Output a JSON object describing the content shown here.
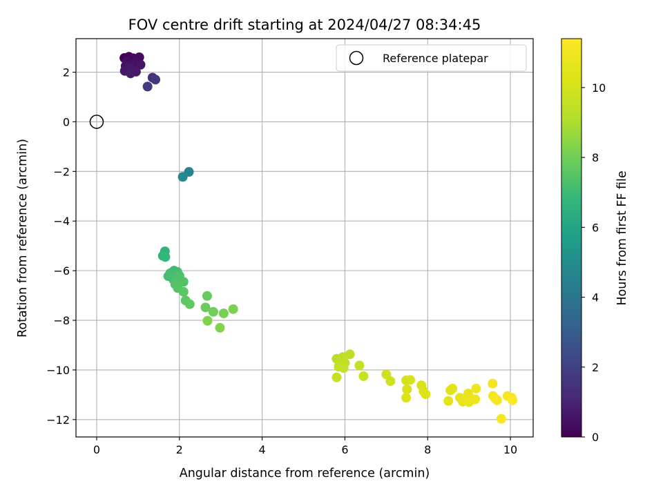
{
  "chart_data": {
    "type": "scatter",
    "title": "FOV centre drift starting at 2024/04/27 08:34:45",
    "xlabel": "Angular distance from reference (arcmin)",
    "ylabel": "Rotation from reference (arcmin)",
    "colorbar_label": "Hours from first FF file",
    "xlim": [
      -0.5,
      10.55
    ],
    "ylim": [
      -12.7,
      3.35
    ],
    "x_ticks": [
      0,
      2,
      4,
      6,
      8,
      10
    ],
    "y_ticks": [
      2,
      0,
      -2,
      -4,
      -6,
      -8,
      -10,
      -12
    ],
    "colorbar_range": [
      0,
      11.4
    ],
    "colorbar_ticks": [
      0,
      2,
      4,
      6,
      8,
      10
    ],
    "colormap": "viridis",
    "grid": true,
    "legend_position": "top-right",
    "reference": {
      "label": "Reference platepar",
      "x": 0,
      "y": 0
    },
    "points": [
      [
        0.67,
        2.57,
        0.0
      ],
      [
        0.78,
        2.62,
        0.1
      ],
      [
        0.88,
        2.56,
        0.2
      ],
      [
        1.03,
        2.6,
        0.3
      ],
      [
        0.73,
        2.42,
        0.35
      ],
      [
        0.94,
        2.38,
        0.4
      ],
      [
        0.85,
        2.28,
        0.45
      ],
      [
        1.06,
        2.3,
        0.5
      ],
      [
        0.7,
        2.25,
        0.55
      ],
      [
        0.8,
        2.15,
        0.6
      ],
      [
        0.68,
        2.05,
        0.65
      ],
      [
        0.95,
        2.02,
        0.7
      ],
      [
        0.82,
        1.95,
        0.75
      ],
      [
        1.35,
        1.78,
        1.4
      ],
      [
        1.42,
        1.7,
        1.6
      ],
      [
        1.23,
        1.42,
        1.8
      ],
      [
        2.23,
        -2.02,
        4.6
      ],
      [
        2.08,
        -2.22,
        4.9
      ],
      [
        1.65,
        -5.22,
        6.6
      ],
      [
        1.6,
        -5.4,
        6.7
      ],
      [
        1.66,
        -5.45,
        6.8
      ],
      [
        1.87,
        -6.0,
        7.0
      ],
      [
        1.78,
        -6.1,
        7.1
      ],
      [
        1.95,
        -6.05,
        7.15
      ],
      [
        1.73,
        -6.22,
        7.2
      ],
      [
        1.85,
        -6.35,
        7.25
      ],
      [
        2.0,
        -6.2,
        7.3
      ],
      [
        1.97,
        -6.42,
        7.35
      ],
      [
        2.1,
        -6.45,
        7.4
      ],
      [
        1.9,
        -6.55,
        7.45
      ],
      [
        1.96,
        -6.7,
        7.5
      ],
      [
        2.1,
        -6.85,
        7.55
      ],
      [
        2.15,
        -7.2,
        7.6
      ],
      [
        2.25,
        -7.35,
        7.7
      ],
      [
        2.67,
        -7.02,
        7.8
      ],
      [
        2.63,
        -7.48,
        7.9
      ],
      [
        2.82,
        -7.66,
        8.0
      ],
      [
        3.07,
        -7.72,
        8.1
      ],
      [
        3.3,
        -7.55,
        8.2
      ],
      [
        2.68,
        -8.02,
        8.25
      ],
      [
        2.98,
        -8.3,
        8.3
      ],
      [
        5.8,
        -9.55,
        9.3
      ],
      [
        6.12,
        -9.37,
        9.35
      ],
      [
        5.95,
        -9.48,
        9.4
      ],
      [
        6.0,
        -9.72,
        9.45
      ],
      [
        5.85,
        -9.87,
        9.5
      ],
      [
        5.97,
        -9.92,
        9.55
      ],
      [
        6.35,
        -9.82,
        9.6
      ],
      [
        5.8,
        -10.3,
        9.65
      ],
      [
        6.45,
        -10.25,
        9.7
      ],
      [
        7.0,
        -10.18,
        9.8
      ],
      [
        7.1,
        -10.45,
        9.9
      ],
      [
        7.48,
        -10.42,
        10.0
      ],
      [
        7.58,
        -10.4,
        10.05
      ],
      [
        7.5,
        -10.78,
        10.1
      ],
      [
        7.85,
        -10.62,
        10.15
      ],
      [
        7.9,
        -10.85,
        10.2
      ],
      [
        7.95,
        -10.98,
        10.25
      ],
      [
        7.48,
        -11.12,
        10.3
      ],
      [
        8.55,
        -10.82,
        10.4
      ],
      [
        8.6,
        -10.75,
        10.45
      ],
      [
        8.5,
        -11.25,
        10.5
      ],
      [
        8.78,
        -11.12,
        10.55
      ],
      [
        8.85,
        -11.28,
        10.6
      ],
      [
        8.92,
        -11.15,
        10.65
      ],
      [
        8.98,
        -10.95,
        10.7
      ],
      [
        9.0,
        -11.3,
        10.75
      ],
      [
        9.08,
        -11.18,
        10.8
      ],
      [
        9.15,
        -11.18,
        10.85
      ],
      [
        9.17,
        -10.75,
        10.9
      ],
      [
        9.57,
        -10.55,
        11.0
      ],
      [
        9.58,
        -11.05,
        11.05
      ],
      [
        9.63,
        -11.15,
        11.1
      ],
      [
        9.68,
        -11.22,
        11.15
      ],
      [
        9.78,
        -11.97,
        11.2
      ],
      [
        9.93,
        -11.05,
        11.25
      ],
      [
        10.03,
        -11.12,
        11.3
      ],
      [
        10.05,
        -11.22,
        11.35
      ]
    ]
  }
}
